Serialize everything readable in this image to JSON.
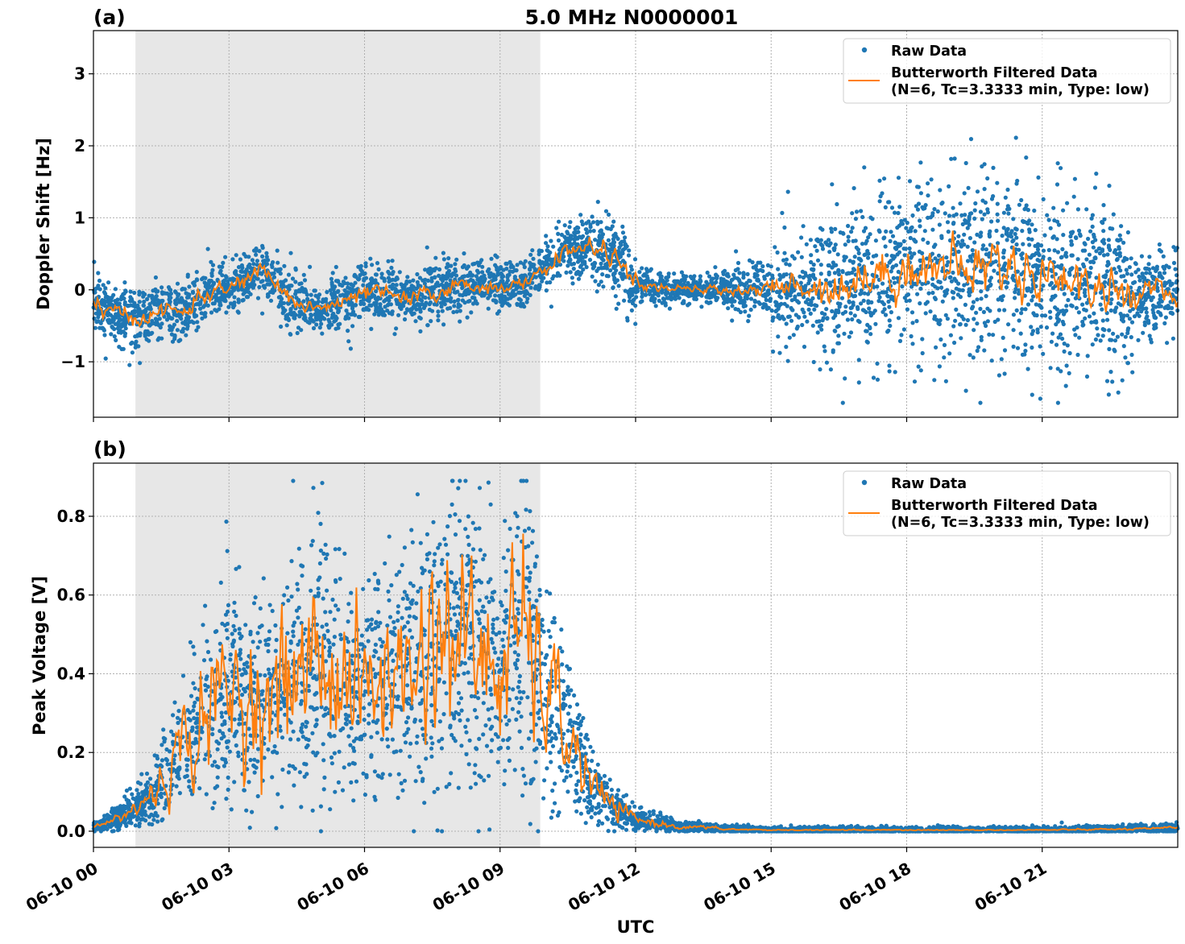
{
  "chart_data": [
    {
      "panel_label": "(a)",
      "title": "5.0 MHz N0000001",
      "type": "scatter+line",
      "xlabel": "",
      "ylabel": "Doppler Shift [Hz]",
      "x_unit": "hours UTC on 06-10",
      "xlim": [
        0,
        24
      ],
      "ylim": [
        -1.77,
        3.6
      ],
      "yticks": [
        -1,
        0,
        1,
        2,
        3
      ],
      "ytick_labels": [
        "−1",
        "0",
        "1",
        "2",
        "3"
      ],
      "grid": true,
      "shaded_interval_hours": [
        0.93,
        9.89
      ],
      "legend": {
        "placement": "top-right",
        "entries": [
          "Raw Data",
          "Butterworth Filtered Data",
          "(N=6, Tc=3.3333 min, Type: low)"
        ]
      },
      "series": [
        {
          "name": "Raw Data",
          "color": "#1f77b4",
          "kind": "scatter",
          "spread_sd_by_hour": [
            0.2,
            0.22,
            0.2,
            0.2,
            0.2,
            0.2,
            0.2,
            0.2,
            0.18,
            0.15,
            0.2,
            0.25,
            0.1,
            0.1,
            0.15,
            0.35,
            0.5,
            0.6,
            0.65,
            0.65,
            0.65,
            0.6,
            0.55,
            0.3
          ]
        },
        {
          "name": "Butterworth Filtered Data",
          "color": "#ff7f0e",
          "kind": "line",
          "x": [
            0,
            0.5,
            1,
            1.5,
            2,
            2.5,
            3,
            3.5,
            3.75,
            4,
            4.5,
            5,
            5.5,
            6,
            6.5,
            7,
            7.5,
            8,
            8.5,
            9,
            9.5,
            10,
            10.5,
            11,
            11.5,
            12,
            12.5,
            13,
            13.5,
            14,
            14.5,
            15,
            15.5,
            16,
            16.5,
            17,
            17.5,
            18,
            18.5,
            19,
            19.5,
            20,
            20.5,
            21,
            21.5,
            22,
            22.5,
            23,
            23.5,
            24
          ],
          "y": [
            -0.15,
            -0.35,
            -0.4,
            -0.3,
            -0.3,
            -0.05,
            0.0,
            0.2,
            0.3,
            0.1,
            -0.2,
            -0.25,
            -0.2,
            -0.05,
            -0.05,
            -0.15,
            -0.05,
            0.05,
            0.05,
            0.05,
            0.05,
            0.3,
            0.55,
            0.6,
            0.5,
            0.05,
            0.03,
            0.0,
            0.0,
            0.0,
            0.0,
            0.0,
            0.05,
            0.05,
            0.05,
            0.15,
            0.2,
            0.3,
            0.3,
            0.3,
            0.3,
            0.35,
            0.3,
            0.2,
            0.2,
            0.05,
            0.0,
            -0.05,
            -0.05,
            -0.05
          ]
        }
      ]
    },
    {
      "panel_label": "(b)",
      "type": "scatter+line",
      "xlabel": "UTC",
      "ylabel": "Peak Voltage [V]",
      "xlim": [
        0,
        24
      ],
      "ylim": [
        -0.041,
        0.935
      ],
      "xticks": [
        0,
        3,
        6,
        9,
        12,
        15,
        18,
        21
      ],
      "xtick_labels": [
        "06-10 00",
        "06-10 03",
        "06-10 06",
        "06-10 09",
        "06-10 12",
        "06-10 15",
        "06-10 18",
        "06-10 21"
      ],
      "yticks": [
        0,
        0.2,
        0.4,
        0.6,
        0.8
      ],
      "ytick_labels": [
        "0.0",
        "0.2",
        "0.4",
        "0.6",
        "0.8"
      ],
      "grid": true,
      "shaded_interval_hours": [
        0.93,
        9.89
      ],
      "legend": {
        "placement": "top-right",
        "entries": [
          "Raw Data",
          "Butterworth Filtered Data",
          "(N=6, Tc=3.3333 min, Type: low)"
        ]
      },
      "series": [
        {
          "name": "Raw Data",
          "color": "#1f77b4",
          "kind": "scatter",
          "max_value": 0.89
        },
        {
          "name": "Butterworth Filtered Data",
          "color": "#ff7f0e",
          "kind": "line",
          "x": [
            0,
            0.5,
            1,
            1.5,
            2,
            2.5,
            3,
            3.5,
            4,
            4.5,
            5,
            5.5,
            6,
            6.5,
            7,
            7.5,
            8,
            8.5,
            9,
            9.5,
            10,
            10.5,
            11,
            11.5,
            12,
            12.5,
            13,
            13.5,
            14,
            15,
            18,
            21,
            23.5,
            24
          ],
          "y": [
            0.01,
            0.03,
            0.06,
            0.12,
            0.22,
            0.3,
            0.35,
            0.35,
            0.33,
            0.4,
            0.45,
            0.4,
            0.35,
            0.4,
            0.4,
            0.5,
            0.5,
            0.45,
            0.4,
            0.5,
            0.35,
            0.25,
            0.12,
            0.06,
            0.03,
            0.02,
            0.01,
            0.01,
            0.005,
            0.003,
            0.003,
            0.003,
            0.006,
            0.01
          ]
        }
      ]
    }
  ]
}
